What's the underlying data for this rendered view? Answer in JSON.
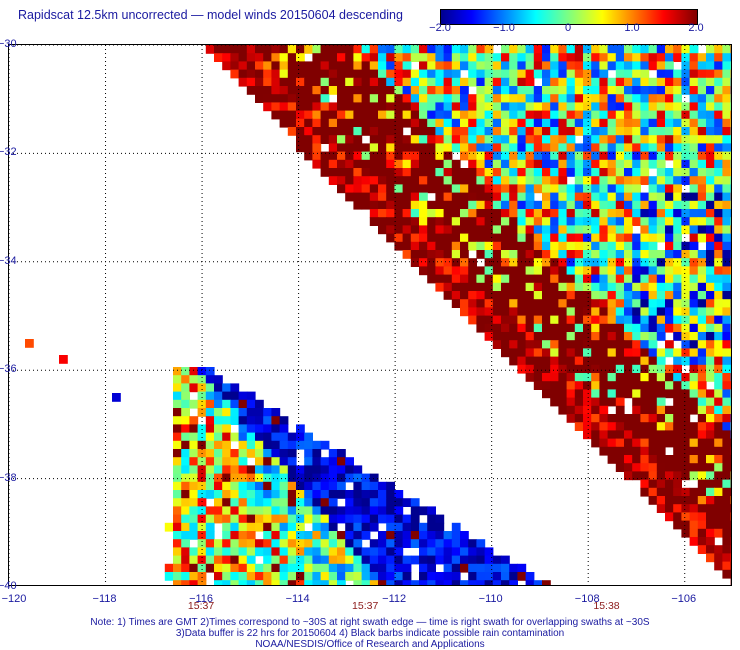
{
  "title": "Rapidscat 12.5km uncorrected — model winds 20150604 descending",
  "colorbar": {
    "min": -2.0,
    "max": 2.0,
    "labels": [
      "−2.0",
      "−1.0",
      "0",
      "1.0",
      "2.0"
    ],
    "label_values": [
      -2.0,
      -1.0,
      0,
      1.0,
      2.0
    ]
  },
  "axes": {
    "lon_range": [
      -120,
      -105
    ],
    "lat_range": [
      -40,
      -30
    ],
    "x_ticks": [
      -120,
      -118,
      -116,
      -114,
      -112,
      -110,
      -108,
      -106
    ],
    "x_labels": [
      "−120",
      "−118",
      "−116",
      "−114",
      "−112",
      "−110",
      "−108",
      "−106"
    ],
    "y_ticks": [
      -30,
      -32,
      -34,
      -36,
      -38,
      -40
    ],
    "y_labels": [
      "−30",
      "−32",
      "−34",
      "−36",
      "−38",
      "−40"
    ],
    "grid": "dotted"
  },
  "times": [
    {
      "label": "15:37",
      "lon": -116
    },
    {
      "label": "15:37",
      "lon": -112.6
    },
    {
      "label": "15:38",
      "lon": -107.6
    }
  ],
  "notes": [
    "Note: 1) Times are GMT 2)Times correspond to ~30S at right swath edge — time is right swath for overlapping swaths at ~30S",
    "3)Data buffer is 22 hrs for 20150604 4) Black barbs indicate possible rain contamination",
    "NOAA/NESDIS/Office of Research and Applications"
  ],
  "map_layers": [
    {
      "name": "swath-east",
      "value_trend": "strongly positive (>2.0) along the western edge, mixed -2.0 to 2.0 toward the east"
    },
    {
      "name": "swath-west",
      "value_trend": "near 0 to slightly positive in the west, strongly negative (-2.0 to -1.0) in the southeast"
    },
    {
      "name": "isolated-cells",
      "values": [
        1.2,
        1.5,
        -1.7
      ]
    }
  ]
}
